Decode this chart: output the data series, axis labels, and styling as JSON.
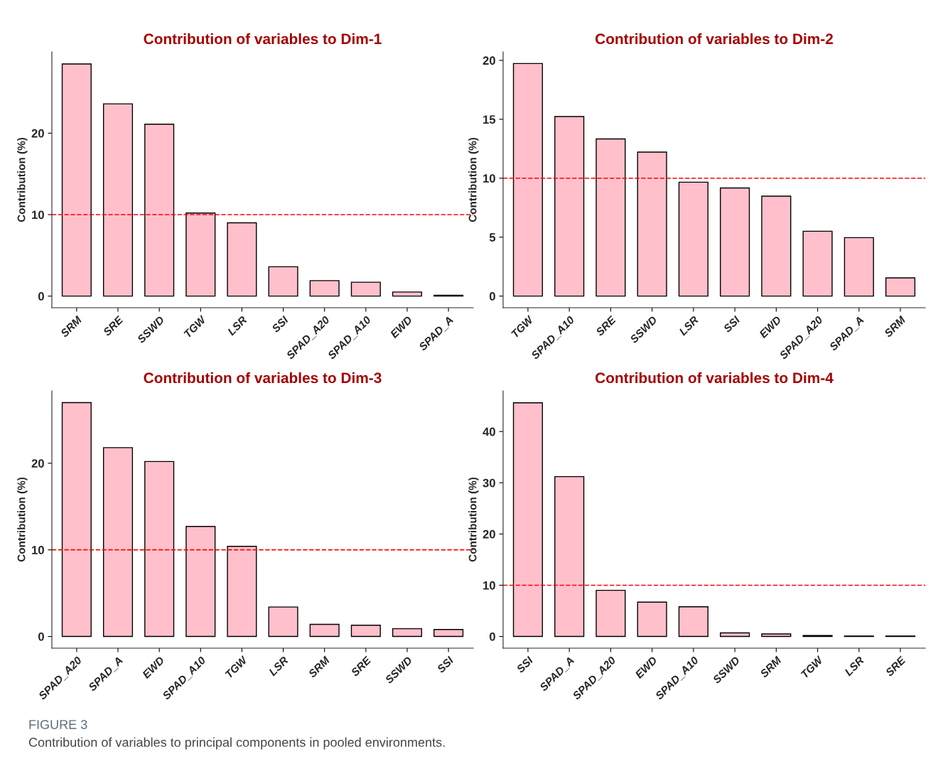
{
  "chart_data": [
    {
      "type": "bar",
      "title": "Contribution of variables to Dim-1",
      "ylabel": "Contribution (%)",
      "categories": [
        "SRM",
        "SRE",
        "SSWD",
        "TGW",
        "LSR",
        "SSI",
        "SPAD_A20",
        "SPAD_A10",
        "EWD",
        "SPAD_A"
      ],
      "values": [
        28.5,
        23.6,
        21.1,
        10.2,
        9.0,
        3.6,
        1.9,
        1.7,
        0.5,
        0.1
      ],
      "color": "#ffc0cb",
      "ylim": [
        -1.43,
        29.98
      ],
      "yticks": [
        0,
        10,
        20
      ],
      "grid": false,
      "ref_lines": [
        {
          "axis": "y",
          "value": 10,
          "color": "#ff0000",
          "line_style": "dashed"
        }
      ]
    },
    {
      "type": "bar",
      "title": "Contribution of variables to Dim-2",
      "ylabel": "Contribution (%)",
      "categories": [
        "TGW",
        "SPAD_A10",
        "SRE",
        "SSWD",
        "LSR",
        "SSI",
        "EWD",
        "SPAD_A20",
        "SPAD_A",
        "SRM"
      ],
      "values": [
        19.73,
        15.23,
        13.33,
        12.22,
        9.66,
        9.17,
        8.48,
        5.5,
        4.96,
        1.54
      ],
      "color": "#ffc0cb",
      "ylim": [
        -0.99,
        20.72
      ],
      "yticks": [
        0,
        5,
        10,
        15,
        20
      ],
      "grid": false,
      "ref_lines": [
        {
          "axis": "y",
          "value": 10,
          "color": "#ff0000",
          "line_style": "dashed"
        }
      ]
    },
    {
      "type": "bar",
      "title": "Contribution of variables to Dim-3",
      "ylabel": "Contribution (%)",
      "categories": [
        "SPAD_A20",
        "SPAD_A",
        "EWD",
        "SPAD_A10",
        "TGW",
        "LSR",
        "SRM",
        "SRE",
        "SSWD",
        "SSI"
      ],
      "values": [
        27.0,
        21.8,
        20.2,
        12.7,
        10.4,
        3.4,
        1.4,
        1.3,
        0.9,
        0.8
      ],
      "color": "#ffc0cb",
      "ylim": [
        -1.35,
        28.35
      ],
      "yticks": [
        0,
        10,
        20
      ],
      "grid": false,
      "ref_lines": [
        {
          "axis": "y",
          "value": 10,
          "color": "#ff0000",
          "line_style": "dashed"
        }
      ]
    },
    {
      "type": "bar",
      "title": "Contribution of variables to Dim-4",
      "ylabel": "Contribution (%)",
      "categories": [
        "SSI",
        "SPAD_A",
        "SPAD_A20",
        "EWD",
        "SPAD_A10",
        "SSWD",
        "SRM",
        "TGW",
        "LSR",
        "SRE"
      ],
      "values": [
        45.6,
        31.2,
        9.0,
        6.7,
        5.8,
        0.7,
        0.5,
        0.2,
        0.1,
        0.1
      ],
      "color": "#ffc0cb",
      "ylim": [
        -2.28,
        47.93
      ],
      "yticks": [
        0,
        10,
        20,
        30,
        40
      ],
      "grid": false,
      "ref_lines": [
        {
          "axis": "y",
          "value": 10,
          "color": "#ff0000",
          "line_style": "dashed"
        }
      ],
      "annotations": [
        "FIGURE 3",
        "Contribution of variables to principal components in pooled environments."
      ]
    }
  ]
}
